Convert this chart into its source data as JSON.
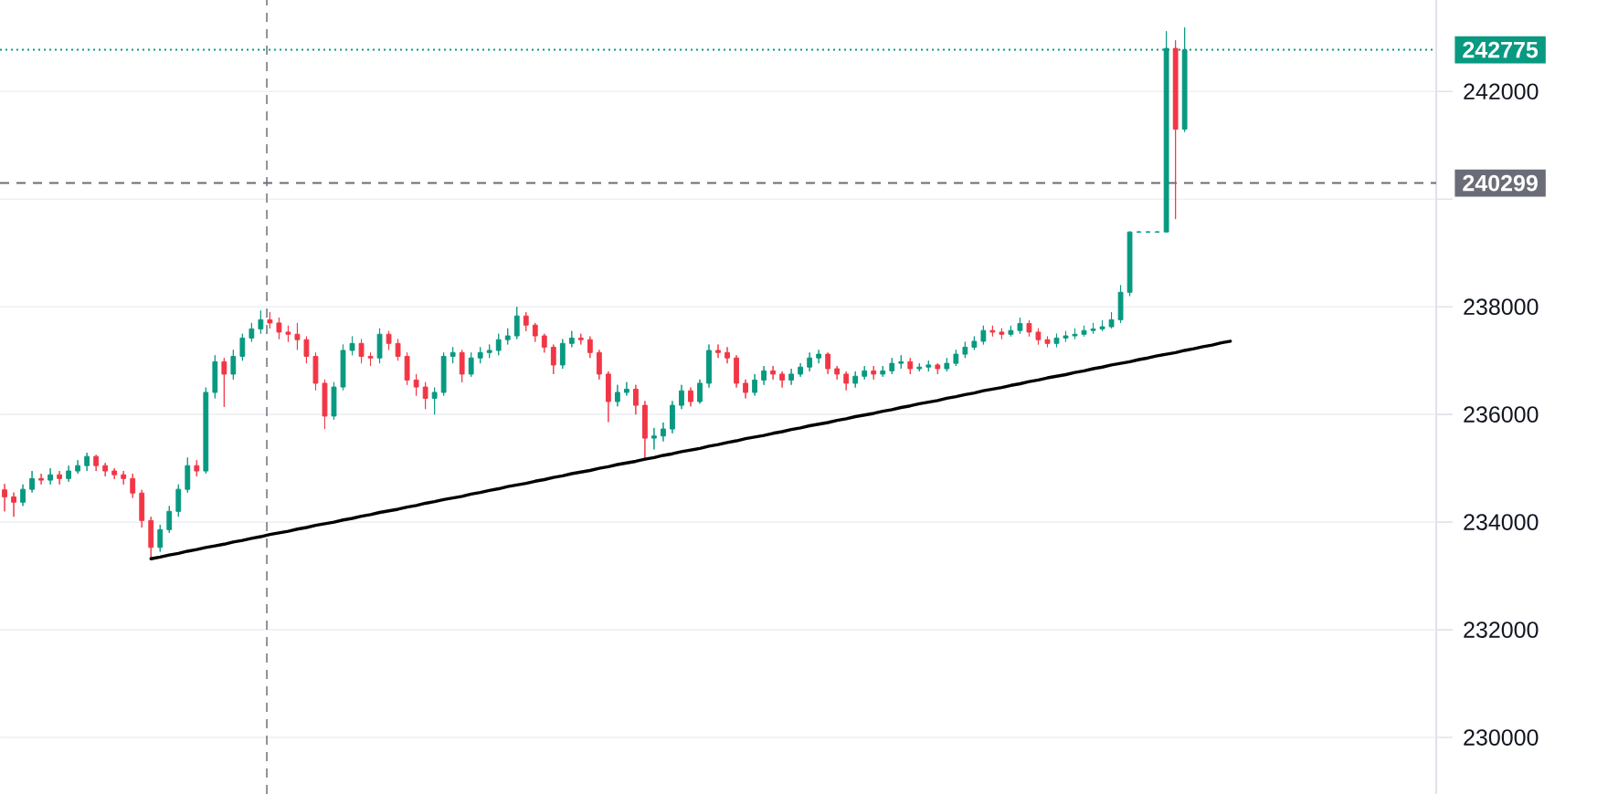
{
  "chart_data": {
    "type": "candlestick",
    "categories": [
      null,
      null,
      null,
      null,
      null,
      null,
      null,
      null,
      null,
      null,
      null,
      null,
      null,
      null,
      null,
      null,
      null,
      null,
      null,
      null,
      null,
      null,
      null,
      null,
      null,
      null,
      null,
      null,
      null,
      null,
      null,
      null,
      null,
      null,
      null,
      null,
      null,
      null,
      null,
      null,
      null,
      null,
      null,
      null,
      null,
      null,
      null,
      null,
      null,
      null,
      null,
      null,
      null,
      null,
      null,
      null,
      null,
      null,
      null,
      null,
      null,
      null,
      null,
      null,
      null,
      null,
      null,
      null,
      null,
      null,
      null,
      null,
      null,
      null,
      null,
      null,
      null,
      null,
      null,
      null,
      null,
      null,
      null,
      null,
      null,
      null,
      null,
      null,
      null,
      null,
      null,
      null,
      null,
      null,
      null,
      null,
      null,
      null,
      null,
      null,
      null,
      null,
      null,
      null,
      null,
      null,
      null,
      null,
      null,
      null,
      null,
      null,
      null,
      null,
      null,
      null,
      null,
      null,
      null,
      null,
      null,
      null,
      null,
      null,
      null,
      null,
      null,
      null,
      null,
      null,
      null,
      null,
      null,
      null,
      null,
      null,
      null,
      null,
      null,
      null,
      null,
      null,
      null,
      null,
      null,
      null,
      null,
      null,
      null,
      null,
      null,
      null,
      null,
      null,
      null,
      null,
      null
    ],
    "ohlc": [
      [
        234600,
        234710,
        234200,
        234470
      ],
      [
        234470,
        234550,
        234100,
        234370
      ],
      [
        234370,
        234700,
        234300,
        234610
      ],
      [
        234610,
        234950,
        234550,
        234810
      ],
      [
        234810,
        234900,
        234700,
        234780
      ],
      [
        234780,
        235000,
        234700,
        234880
      ],
      [
        234880,
        234950,
        234700,
        234810
      ],
      [
        234810,
        235050,
        234750,
        234950
      ],
      [
        234950,
        235150,
        234900,
        235050
      ],
      [
        235050,
        235290,
        234950,
        235220
      ],
      [
        235220,
        235250,
        234950,
        235050
      ],
      [
        235050,
        235100,
        234850,
        234950
      ],
      [
        234950,
        235000,
        234800,
        234880
      ],
      [
        234880,
        234950,
        234700,
        234810
      ],
      [
        234810,
        234900,
        234450,
        234540
      ],
      [
        234540,
        234600,
        233900,
        234030
      ],
      [
        234030,
        234100,
        233320,
        233530
      ],
      [
        233530,
        233950,
        233450,
        233860
      ],
      [
        233860,
        234300,
        233800,
        234200
      ],
      [
        234200,
        234700,
        234100,
        234610
      ],
      [
        234610,
        235200,
        234550,
        235050
      ],
      [
        235050,
        235150,
        234850,
        234950
      ],
      [
        234950,
        236500,
        234900,
        236410
      ],
      [
        236410,
        237100,
        236300,
        236980
      ],
      [
        236980,
        237050,
        236140,
        236750
      ],
      [
        236750,
        237200,
        236650,
        237080
      ],
      [
        237080,
        237500,
        237000,
        237420
      ],
      [
        237420,
        237700,
        237350,
        237590
      ],
      [
        237590,
        237930,
        237500,
        237760
      ],
      [
        237760,
        237900,
        237600,
        237700
      ],
      [
        237700,
        237800,
        237400,
        237530
      ],
      [
        237530,
        237650,
        237350,
        237490
      ],
      [
        237490,
        237700,
        237200,
        237390
      ],
      [
        237390,
        237450,
        236950,
        237080
      ],
      [
        237080,
        237150,
        236450,
        236580
      ],
      [
        236580,
        236650,
        235730,
        235970
      ],
      [
        235970,
        236600,
        235900,
        236510
      ],
      [
        236510,
        237300,
        236450,
        237190
      ],
      [
        237190,
        237450,
        237100,
        237320
      ],
      [
        237320,
        237400,
        236950,
        237080
      ],
      [
        237080,
        237150,
        236900,
        237050
      ],
      [
        237050,
        237600,
        236950,
        237490
      ],
      [
        237490,
        237550,
        237200,
        237320
      ],
      [
        237320,
        237400,
        237000,
        237080
      ],
      [
        237080,
        237150,
        236550,
        236640
      ],
      [
        236640,
        236750,
        236350,
        236510
      ],
      [
        236510,
        236600,
        236100,
        236300
      ],
      [
        236300,
        236500,
        236000,
        236410
      ],
      [
        236410,
        237150,
        236350,
        237080
      ],
      [
        237080,
        237250,
        236950,
        237150
      ],
      [
        237150,
        237200,
        236600,
        236750
      ],
      [
        236750,
        237150,
        236700,
        237050
      ],
      [
        237050,
        237250,
        236950,
        237150
      ],
      [
        237150,
        237300,
        237050,
        237190
      ],
      [
        237190,
        237500,
        237100,
        237390
      ],
      [
        237390,
        237600,
        237300,
        237460
      ],
      [
        237460,
        238000,
        237400,
        237830
      ],
      [
        237830,
        237900,
        237550,
        237660
      ],
      [
        237660,
        237700,
        237350,
        237460
      ],
      [
        237460,
        237500,
        237150,
        237250
      ],
      [
        237250,
        237300,
        236750,
        236920
      ],
      [
        236920,
        237400,
        236850,
        237320
      ],
      [
        237320,
        237550,
        237250,
        237420
      ],
      [
        237420,
        237500,
        237300,
        237390
      ],
      [
        237390,
        237450,
        237050,
        237150
      ],
      [
        237150,
        237200,
        236650,
        236750
      ],
      [
        236750,
        236800,
        235860,
        236240
      ],
      [
        236240,
        236550,
        236150,
        236410
      ],
      [
        236410,
        236600,
        236350,
        236470
      ],
      [
        236470,
        236550,
        236000,
        236170
      ],
      [
        236170,
        236250,
        235150,
        235560
      ],
      [
        235560,
        235750,
        235350,
        235600
      ],
      [
        235600,
        235850,
        235500,
        235730
      ],
      [
        235730,
        236250,
        235650,
        236170
      ],
      [
        236170,
        236550,
        236100,
        236440
      ],
      [
        236440,
        236500,
        236150,
        236240
      ],
      [
        236240,
        236650,
        236200,
        236580
      ],
      [
        236580,
        237300,
        236500,
        237190
      ],
      [
        237190,
        237300,
        237050,
        237150
      ],
      [
        237150,
        237250,
        236950,
        237050
      ],
      [
        237050,
        237100,
        236500,
        236580
      ],
      [
        236580,
        236650,
        236300,
        236410
      ],
      [
        236410,
        236750,
        236350,
        236640
      ],
      [
        236640,
        236900,
        236550,
        236810
      ],
      [
        236810,
        236900,
        236650,
        236750
      ],
      [
        236750,
        236800,
        236500,
        236640
      ],
      [
        236640,
        236850,
        236550,
        236750
      ],
      [
        236750,
        236950,
        236700,
        236880
      ],
      [
        236880,
        237150,
        236800,
        237050
      ],
      [
        237050,
        237200,
        236950,
        237120
      ],
      [
        237120,
        237150,
        236750,
        236850
      ],
      [
        236850,
        236900,
        236650,
        236750
      ],
      [
        236750,
        236800,
        236450,
        236580
      ],
      [
        236580,
        236800,
        236500,
        236710
      ],
      [
        236710,
        236900,
        236650,
        236810
      ],
      [
        236810,
        236900,
        236650,
        236750
      ],
      [
        236750,
        236900,
        236700,
        236810
      ],
      [
        236810,
        237050,
        236750,
        236950
      ],
      [
        236950,
        237100,
        236850,
        236980
      ],
      [
        236980,
        237050,
        236750,
        236850
      ],
      [
        236850,
        236950,
        236800,
        236880
      ],
      [
        236880,
        237000,
        236800,
        236920
      ],
      [
        236920,
        236950,
        236750,
        236850
      ],
      [
        236850,
        237050,
        236800,
        236950
      ],
      [
        236950,
        237200,
        236900,
        237120
      ],
      [
        237120,
        237350,
        237050,
        237250
      ],
      [
        237250,
        237450,
        237200,
        237360
      ],
      [
        237360,
        237650,
        237300,
        237560
      ],
      [
        237560,
        237650,
        237450,
        237530
      ],
      [
        237530,
        237600,
        237400,
        237490
      ],
      [
        237490,
        237650,
        237450,
        237560
      ],
      [
        237560,
        237800,
        237500,
        237690
      ],
      [
        237690,
        237750,
        237450,
        237530
      ],
      [
        237530,
        237600,
        237300,
        237390
      ],
      [
        237390,
        237450,
        237250,
        237320
      ],
      [
        237320,
        237500,
        237250,
        237420
      ],
      [
        237420,
        237550,
        237350,
        237460
      ],
      [
        237460,
        237600,
        237400,
        237490
      ],
      [
        237490,
        237650,
        237450,
        237560
      ],
      [
        237560,
        237700,
        237500,
        237590
      ],
      [
        237590,
        237750,
        237550,
        237630
      ],
      [
        237630,
        237900,
        237600,
        237760
      ],
      [
        237760,
        238400,
        237700,
        238270
      ],
      [
        238270,
        239400,
        238200,
        239390
      ],
      [
        239390,
        239400,
        239380,
        239390
      ],
      [
        239390,
        239400,
        239380,
        239390
      ],
      [
        239390,
        239400,
        239380,
        239390
      ],
      [
        239390,
        243120,
        239390,
        242800
      ],
      [
        242800,
        242950,
        239630,
        241300
      ],
      [
        241300,
        243190,
        241250,
        242775
      ],
      null,
      null,
      null,
      null,
      null,
      null,
      null,
      null,
      null,
      null,
      null,
      null,
      null,
      null,
      null,
      null,
      null,
      null,
      null,
      null,
      null,
      null,
      null,
      null,
      null,
      null,
      null
    ],
    "colors": [
      "#f23645",
      "#f23645",
      "#089981",
      "#089981",
      "#f23645",
      "#089981",
      "#f23645",
      "#089981",
      "#089981",
      "#089981",
      "#f23645",
      "#f23645",
      "#f23645",
      "#f23645",
      "#f23645",
      "#f23645",
      "#f23645",
      "#089981",
      "#089981",
      "#089981",
      "#089981",
      "#f23645",
      "#089981",
      "#089981",
      "#f23645",
      "#089981",
      "#089981",
      "#089981",
      "#089981",
      "#f23645",
      "#f23645",
      "#f23645",
      "#f23645",
      "#f23645",
      "#f23645",
      "#f23645",
      "#089981",
      "#089981",
      "#089981",
      "#f23645",
      "#f23645",
      "#089981",
      "#f23645",
      "#f23645",
      "#f23645",
      "#f23645",
      "#f23645",
      "#089981",
      "#089981",
      "#089981",
      "#f23645",
      "#089981",
      "#089981",
      "#089981",
      "#089981",
      "#089981",
      "#089981",
      "#f23645",
      "#f23645",
      "#f23645",
      "#f23645",
      "#089981",
      "#089981",
      "#f23645",
      "#f23645",
      "#f23645",
      "#f23645",
      "#089981",
      "#089981",
      "#f23645",
      "#f23645",
      "#089981",
      "#089981",
      "#089981",
      "#089981",
      "#f23645",
      "#089981",
      "#089981",
      "#f23645",
      "#f23645",
      "#f23645",
      "#f23645",
      "#089981",
      "#089981",
      "#f23645",
      "#f23645",
      "#089981",
      "#089981",
      "#089981",
      "#089981",
      "#f23645",
      "#f23645",
      "#f23645",
      "#089981",
      "#089981",
      "#f23645",
      "#089981",
      "#089981",
      "#089981",
      "#f23645",
      "#089981",
      "#089981",
      "#f23645",
      "#089981",
      "#089981",
      "#089981",
      "#089981",
      "#089981",
      "#f23645",
      "#f23645",
      "#089981",
      "#089981",
      "#f23645",
      "#f23645",
      "#f23645",
      "#089981",
      "#089981",
      "#089981",
      "#089981",
      "#089981",
      "#089981",
      "#089981",
      "#089981",
      "#089981",
      "#089981",
      "#089981",
      "#089981",
      "#089981",
      "#f23645",
      "#089981",
      null,
      null,
      null,
      null,
      null,
      null,
      null,
      null,
      null,
      null,
      null,
      null,
      null,
      null,
      null,
      null,
      null,
      null,
      null,
      null,
      null,
      null,
      null,
      null,
      null,
      null,
      null
    ],
    "series": [
      {
        "type": "line",
        "color": "#000000",
        "values": [
          null,
          null,
          null,
          null,
          null,
          null,
          null,
          null,
          null,
          null,
          null,
          null,
          null,
          null,
          null,
          null,
          233320,
          233350,
          233390,
          233420,
          233460,
          233490,
          233530,
          233560,
          233590,
          233630,
          233660,
          233700,
          233730,
          233770,
          233800,
          233830,
          233870,
          233900,
          233940,
          233970,
          234000,
          234040,
          234070,
          234110,
          234140,
          234180,
          234210,
          234240,
          234280,
          234310,
          234350,
          234380,
          234420,
          234450,
          234480,
          234520,
          234550,
          234590,
          234620,
          234660,
          234690,
          234720,
          234760,
          234790,
          234830,
          234860,
          234900,
          234930,
          234960,
          235000,
          235030,
          235070,
          235100,
          235130,
          235170,
          235200,
          235240,
          235270,
          235310,
          235340,
          235370,
          235410,
          235440,
          235480,
          235510,
          235550,
          235580,
          235610,
          235650,
          235680,
          235720,
          235750,
          235790,
          235820,
          235850,
          235890,
          235920,
          235960,
          235990,
          236020,
          236060,
          236090,
          236130,
          236160,
          236200,
          236230,
          236260,
          236300,
          236330,
          236370,
          236400,
          236440,
          236470,
          236500,
          236540,
          236570,
          236610,
          236640,
          236680,
          236710,
          236740,
          236780,
          236810,
          236850,
          236880,
          236920,
          236950,
          236980,
          237020,
          237050,
          237090,
          237120,
          237150,
          237190,
          237220,
          237260,
          237290,
          237330,
          237360,
          null,
          null,
          null,
          null,
          null,
          null,
          null,
          null,
          null,
          null,
          null,
          null,
          null,
          null,
          null,
          null,
          null,
          null,
          null,
          null,
          null,
          null
        ]
      }
    ],
    "ref_lines": [
      {
        "axis": "y",
        "value": 242775,
        "label": "242775",
        "color": "#089981",
        "line_style": "dotted"
      },
      {
        "axis": "y",
        "value": 240299,
        "label": "240299",
        "color": "#6a6d78",
        "line_style": "dashed"
      }
    ],
    "ylim": [
      228950,
      243700
    ],
    "yticks": [
      230000,
      232000,
      234000,
      236000,
      238000,
      {
        "value": 240000,
        "label": null
      },
      242000
    ],
    "grid": "y",
    "tick_labels": "y"
  }
}
